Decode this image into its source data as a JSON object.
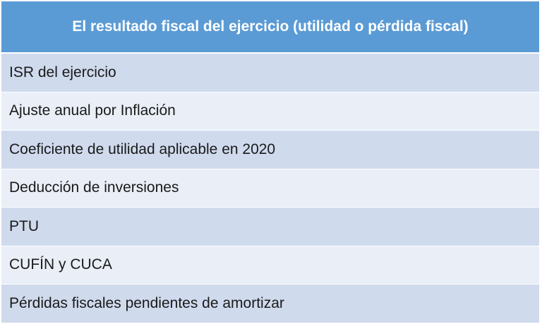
{
  "table": {
    "header": "El resultado fiscal del ejercicio (utilidad o pérdida fiscal)",
    "rows": [
      "ISR del ejercicio",
      "Ajuste anual por Inflación",
      "Coeficiente de utilidad aplicable en 2020",
      "Deducción de inversiones",
      "PTU",
      "CUFÍN y CUCA",
      "Pérdidas fiscales pendientes de amortizar"
    ]
  },
  "colors": {
    "header_bg": "#5b9bd5",
    "row_dark": "#cfdaed",
    "row_light": "#e9eef7"
  }
}
